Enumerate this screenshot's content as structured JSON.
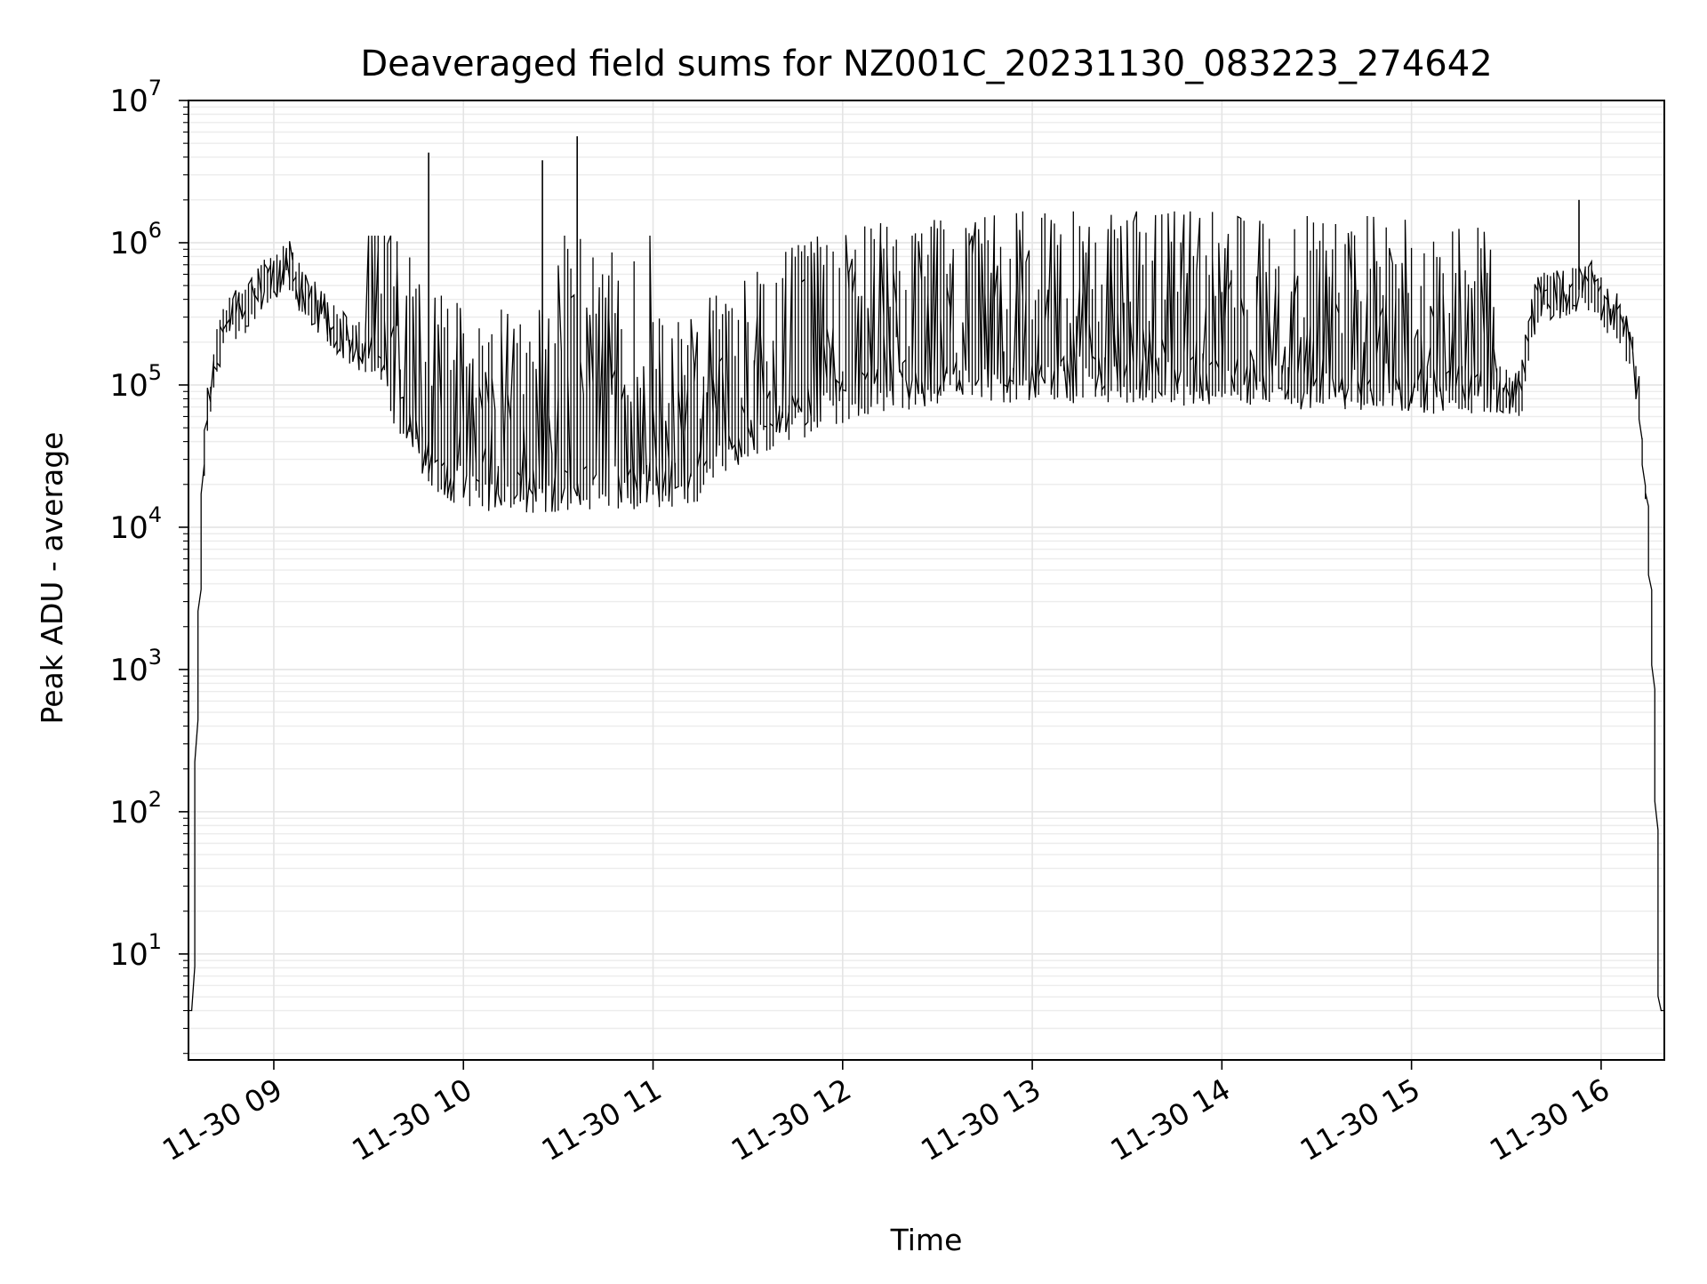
{
  "chart_data": {
    "type": "line",
    "title": "Deaveraged field sums for NZ001C_20231130_083223_274642",
    "xlabel": "Time",
    "ylabel": "Peak ADU - average",
    "yscale": "log",
    "ylim": [
      1.8,
      10000000
    ],
    "xlim": [
      "2023-11-30T08:33",
      "2023-11-30T16:20"
    ],
    "grid": true,
    "line_color": "#000000",
    "x_ticks": [
      {
        "value": "2023-11-30T09:00",
        "label": "11-30 09"
      },
      {
        "value": "2023-11-30T10:00",
        "label": "11-30 10"
      },
      {
        "value": "2023-11-30T11:00",
        "label": "11-30 11"
      },
      {
        "value": "2023-11-30T12:00",
        "label": "11-30 12"
      },
      {
        "value": "2023-11-30T13:00",
        "label": "11-30 13"
      },
      {
        "value": "2023-11-30T14:00",
        "label": "11-30 14"
      },
      {
        "value": "2023-11-30T15:00",
        "label": "11-30 15"
      },
      {
        "value": "2023-11-30T16:00",
        "label": "11-30 16"
      }
    ],
    "y_ticks": [
      {
        "value": 10,
        "base": "10",
        "exp": "1"
      },
      {
        "value": 100,
        "base": "10",
        "exp": "2"
      },
      {
        "value": 1000,
        "base": "10",
        "exp": "3"
      },
      {
        "value": 10000,
        "base": "10",
        "exp": "4"
      },
      {
        "value": 100000,
        "base": "10",
        "exp": "5"
      },
      {
        "value": 1000000,
        "base": "10",
        "exp": "6"
      },
      {
        "value": 10000000,
        "base": "10",
        "exp": "7"
      }
    ],
    "series": [
      {
        "points": [
          [
            "2023-11-30T08:33",
            4
          ],
          [
            "2023-11-30T08:35",
            4
          ],
          [
            "2023-11-30T08:36",
            400
          ],
          [
            "2023-11-30T08:38",
            20000
          ],
          [
            "2023-11-30T08:40",
            80000
          ],
          [
            "2023-11-30T08:43",
            200000
          ],
          [
            "2023-11-30T08:47",
            300000
          ],
          [
            "2023-11-30T08:52",
            350000
          ],
          [
            "2023-11-30T08:57",
            500000
          ],
          [
            "2023-11-30T09:02",
            600000
          ],
          [
            "2023-11-30T09:06",
            700000
          ],
          [
            "2023-11-30T09:08",
            500000
          ],
          [
            "2023-11-30T09:13",
            380000
          ],
          [
            "2023-11-30T09:20",
            250000
          ],
          [
            "2023-11-30T09:28",
            180000
          ],
          [
            "2023-11-30T09:35",
            120000
          ],
          [
            "2023-11-30T09:40",
            70000
          ],
          [
            "2023-11-30T09:45",
            40000
          ],
          [
            "2023-11-30T09:50",
            30000
          ],
          [
            "2023-11-30T09:55",
            22000
          ],
          [
            "2023-11-30T10:05",
            20000
          ],
          [
            "2023-11-30T10:20",
            18000
          ],
          [
            "2023-11-30T10:40",
            20000
          ],
          [
            "2023-11-30T11:00",
            20000
          ],
          [
            "2023-11-30T11:15",
            22000
          ],
          [
            "2023-11-30T11:18",
            30000
          ],
          [
            "2023-11-30T11:30",
            40000
          ],
          [
            "2023-11-30T11:45",
            60000
          ],
          [
            "2023-11-30T12:00",
            80000
          ],
          [
            "2023-11-30T12:30",
            100000
          ],
          [
            "2023-11-30T13:00",
            110000
          ],
          [
            "2023-11-30T13:30",
            110000
          ],
          [
            "2023-11-30T14:00",
            105000
          ],
          [
            "2023-11-30T14:30",
            100000
          ],
          [
            "2023-11-30T15:00",
            95000
          ],
          [
            "2023-11-30T15:35",
            90000
          ],
          [
            "2023-11-30T15:40",
            400000
          ],
          [
            "2023-11-30T15:50",
            450000
          ],
          [
            "2023-11-30T15:58",
            500000
          ],
          [
            "2023-11-30T16:02",
            350000
          ],
          [
            "2023-11-30T16:08",
            250000
          ],
          [
            "2023-11-30T16:12",
            100000
          ],
          [
            "2023-11-30T16:15",
            15000
          ],
          [
            "2023-11-30T16:17",
            1000
          ],
          [
            "2023-11-30T16:18",
            80
          ],
          [
            "2023-11-30T16:19",
            4
          ],
          [
            "2023-11-30T16:20",
            4
          ]
        ],
        "spikes": [
          [
            "2023-11-30T09:49",
            4300000
          ],
          [
            "2023-11-30T10:25",
            3800000
          ],
          [
            "2023-11-30T10:36",
            5600000
          ],
          [
            "2023-11-30T15:53",
            2000000
          ]
        ]
      }
    ]
  }
}
